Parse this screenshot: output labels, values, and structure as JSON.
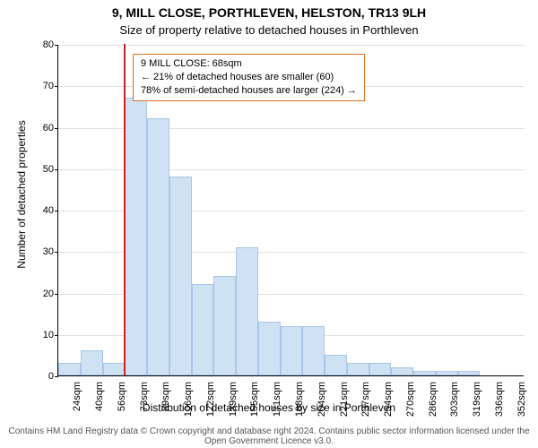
{
  "title_line1": "9, MILL CLOSE, PORTHLEVEN, HELSTON, TR13 9LH",
  "title_line2": "Size of property relative to detached houses in Porthleven",
  "y_axis_label": "Number of detached properties",
  "x_axis_label": "Distribution of detached houses by size in Porthleven",
  "attribution": "Contains HM Land Registry data © Crown copyright and database right 2024. Contains public sector information licensed under the Open Government Licence v3.0.",
  "histogram": {
    "type": "histogram",
    "categories": [
      "24sqm",
      "40sqm",
      "56sqm",
      "73sqm",
      "89sqm",
      "106sqm",
      "122sqm",
      "139sqm",
      "155sqm",
      "171sqm",
      "188sqm",
      "204sqm",
      "221sqm",
      "237sqm",
      "254sqm",
      "270sqm",
      "286sqm",
      "303sqm",
      "319sqm",
      "336sqm",
      "352sqm"
    ],
    "values": [
      3,
      6,
      3,
      67,
      62,
      48,
      22,
      24,
      31,
      13,
      12,
      12,
      5,
      3,
      3,
      2,
      1,
      1,
      1,
      0,
      0
    ],
    "bar_fill_color": "#cfe2f3",
    "bar_border_color": "#a9c6e8",
    "background_color": "#ffffff",
    "grid_color": "#e0e0e0",
    "axis_color": "#000000",
    "ylim": [
      0,
      80
    ],
    "ytick_step": 10,
    "title_fontsize": 14,
    "subtitle_fontsize": 13,
    "label_fontsize": 12,
    "tick_fontsize": 11,
    "bar_width_ratio": 1.0
  },
  "marker": {
    "bin_index": 3,
    "position_within_bin": 0.0,
    "color": "#d02020",
    "annotation_border_color": "#e07020",
    "lines": [
      "9 MILL CLOSE: 68sqm",
      "← 21% of detached houses are smaller (60)",
      "78% of semi-detached houses are larger (224) →"
    ],
    "annotation_fontsize": 11
  }
}
